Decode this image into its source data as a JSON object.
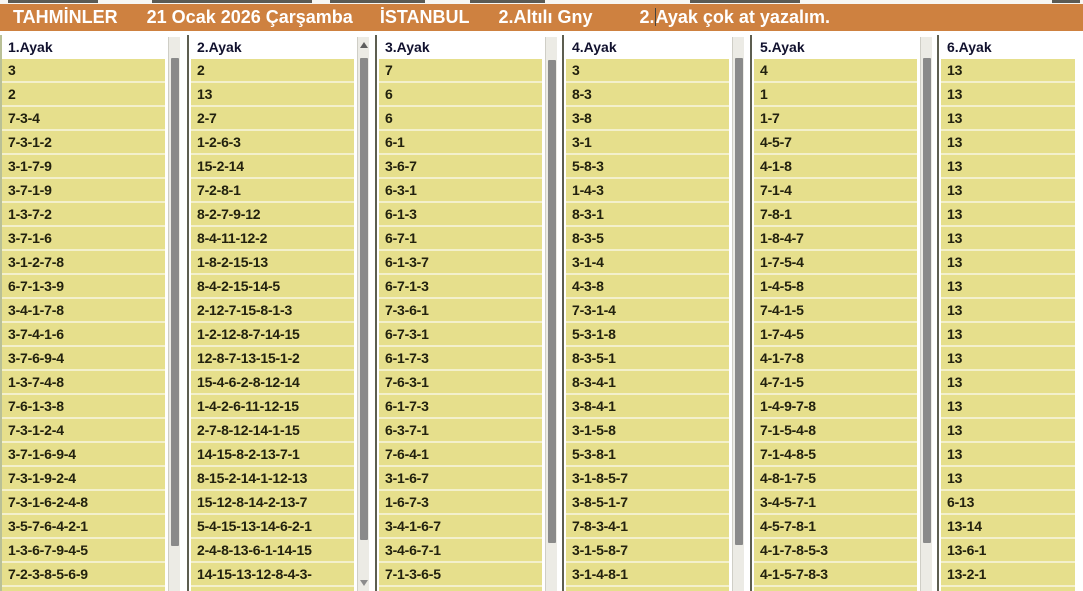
{
  "header": {
    "title": "TAHMİNLER",
    "date": "21 Ocak 2026 Çarşamba",
    "city": "İSTANBUL",
    "race": "2.Altılı Gny",
    "note_prefix": "2.",
    "note_suffix": "Ayak çok at yazalım."
  },
  "colors": {
    "header_bg": "#CE8140",
    "header_text": "#FFFFFF",
    "row_bg": "#E6DF8C",
    "row_gap": "#F3F0CC",
    "label_text": "#11112E",
    "row_text": "#22210E"
  },
  "columns": [
    {
      "label": "1.Ayak",
      "rows": [
        "3",
        "2",
        "7-3-4",
        "7-3-1-2",
        "3-1-7-9",
        "3-7-1-9",
        "1-3-7-2",
        "3-7-1-6",
        "3-1-2-7-8",
        "6-7-1-3-9",
        "3-4-1-7-8",
        "3-7-4-1-6",
        "3-7-6-9-4",
        "1-3-7-4-8",
        "7-6-1-3-8",
        "7-3-1-2-4",
        "3-7-1-6-9-4",
        "7-3-1-9-2-4",
        "7-3-1-6-2-4-8",
        "3-5-7-6-4-2-1",
        "1-3-6-7-9-4-5",
        "7-2-3-8-5-6-9"
      ]
    },
    {
      "label": "2.Ayak",
      "rows": [
        "2",
        "13",
        "2-7",
        "1-2-6-3",
        "15-2-14",
        "7-2-8-1",
        "8-2-7-9-12",
        "8-4-11-12-2",
        "1-8-2-15-13",
        "8-4-2-15-14-5",
        "2-12-7-15-8-1-3",
        "1-2-12-8-7-14-15",
        "12-8-7-13-15-1-2",
        "15-4-6-2-8-12-14",
        "1-4-2-6-11-12-15",
        "2-7-8-12-14-1-15",
        "14-15-8-2-13-7-1",
        "8-15-2-14-1-12-13",
        "15-12-8-14-2-13-7",
        "5-4-15-13-14-6-2-1",
        "2-4-8-13-6-1-14-15",
        "14-15-13-12-8-4-3-"
      ]
    },
    {
      "label": "3.Ayak",
      "rows": [
        "7",
        "6",
        "6",
        "6-1",
        "3-6-7",
        "6-3-1",
        "6-1-3",
        "6-7-1",
        "6-1-3-7",
        "6-7-1-3",
        "7-3-6-1",
        "6-7-3-1",
        "6-1-7-3",
        "7-6-3-1",
        "6-1-7-3",
        "6-3-7-1",
        "7-6-4-1",
        "3-1-6-7",
        "1-6-7-3",
        "3-4-1-6-7",
        "3-4-6-7-1",
        "7-1-3-6-5"
      ]
    },
    {
      "label": "4.Ayak",
      "rows": [
        "3",
        "8-3",
        "3-8",
        "3-1",
        "5-8-3",
        "1-4-3",
        "8-3-1",
        "8-3-5",
        "3-1-4",
        "4-3-8",
        "7-3-1-4",
        "5-3-1-8",
        "8-3-5-1",
        "8-3-4-1",
        "3-8-4-1",
        "3-1-5-8",
        "5-3-8-1",
        "3-1-8-5-7",
        "3-8-5-1-7",
        "7-8-3-4-1",
        "3-1-5-8-7",
        "3-1-4-8-1"
      ]
    },
    {
      "label": "5.Ayak",
      "rows": [
        "4",
        "1",
        "1-7",
        "4-5-7",
        "4-1-8",
        "7-1-4",
        "7-8-1",
        "1-8-4-7",
        "1-7-5-4",
        "1-4-5-8",
        "7-4-1-5",
        "1-7-4-5",
        "4-1-7-8",
        "4-7-1-5",
        "1-4-9-7-8",
        "7-1-5-4-8",
        "7-1-4-8-5",
        "4-8-1-7-5",
        "3-4-5-7-1",
        "4-5-7-8-1",
        "4-1-7-8-5-3",
        "4-1-5-7-8-3"
      ]
    },
    {
      "label": "6.Ayak",
      "rows": [
        "13",
        "13",
        "13",
        "13",
        "13",
        "13",
        "13",
        "13",
        "13",
        "13",
        "13",
        "13",
        "13",
        "13",
        "13",
        "13",
        "13",
        "13",
        "6-13",
        "13-14",
        "13-6-1",
        "13-2-1"
      ]
    }
  ]
}
